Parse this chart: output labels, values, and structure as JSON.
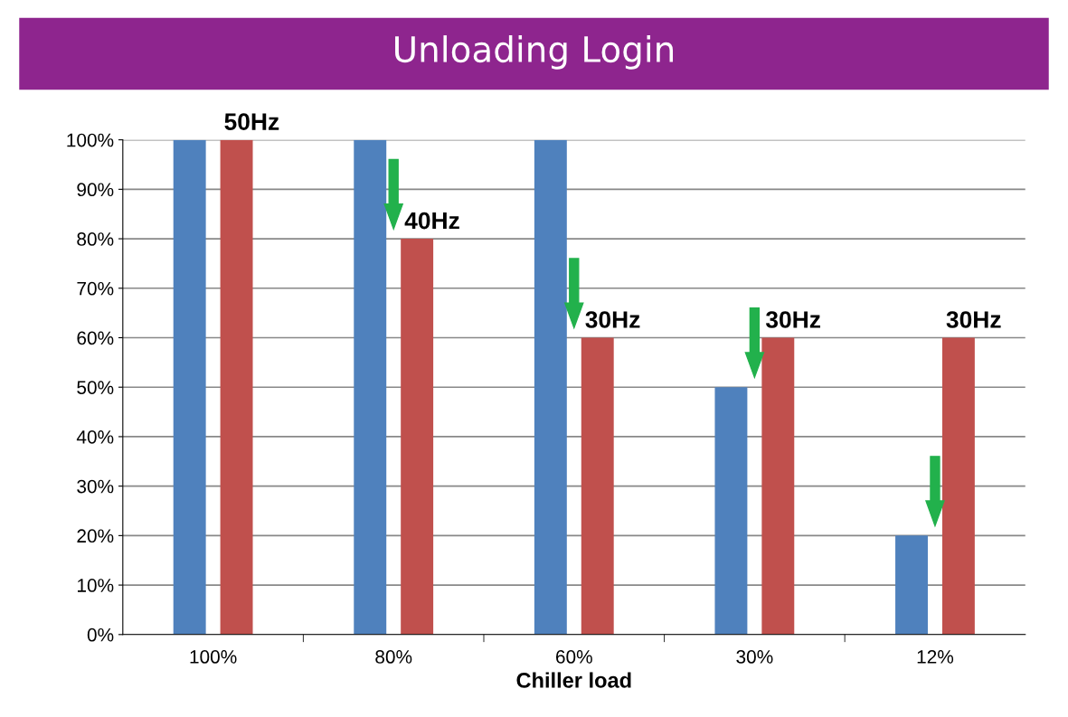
{
  "chart_data": {
    "type": "bar",
    "title": "Unloading Login",
    "xlabel": "Chiller load",
    "categories": [
      "100%",
      "80%",
      "60%",
      "30%",
      "12%"
    ],
    "series": [
      {
        "color": "#4f81bd",
        "values": [
          100,
          100,
          100,
          50,
          20
        ]
      },
      {
        "color": "#c0504d",
        "values": [
          100,
          80,
          60,
          60,
          60
        ]
      }
    ],
    "annotations": [
      "50Hz",
      "40Hz",
      "30Hz",
      "30Hz",
      "30Hz"
    ],
    "ylim": [
      0,
      100
    ],
    "yticks": [
      {
        "value": 0,
        "label": "0%"
      },
      {
        "value": 10,
        "label": "10%"
      },
      {
        "value": 20,
        "label": "20%"
      },
      {
        "value": 30,
        "label": "30%"
      },
      {
        "value": 40,
        "label": "40%"
      },
      {
        "value": 50,
        "label": "50%"
      },
      {
        "value": 60,
        "label": "60%"
      },
      {
        "value": 70,
        "label": "70%"
      },
      {
        "value": 80,
        "label": "80%"
      },
      {
        "value": 90,
        "label": "90%"
      },
      {
        "value": 100,
        "label": "100%"
      }
    ],
    "grid": "y",
    "legend": false
  }
}
